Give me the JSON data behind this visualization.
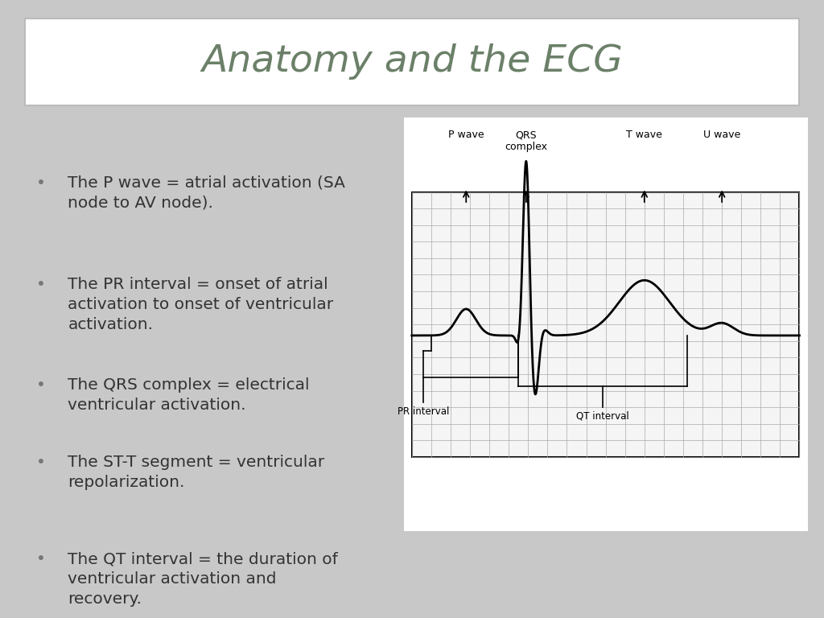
{
  "title": "Anatomy and the ECG",
  "title_color": "#6b8068",
  "title_fontsize": 34,
  "bg_color": "#c8c8c8",
  "title_box_color": "#ffffff",
  "title_box_edge": "#bbbbbb",
  "bullet_points": [
    "The P wave = atrial activation (SA\nnode to AV node).",
    "The PR interval = onset of atrial\nactivation to onset of ventricular\nactivation.",
    "The QRS complex = electrical\nventricular activation.",
    "The ST-T segment = ventricular\nrepolarization.",
    "The QT interval = the duration of\nventricular activation and\nrecovery."
  ],
  "bullet_color": "#333333",
  "bullet_fontsize": 14.5,
  "ecg_labels_top": [
    "P wave",
    "QRS\ncomplex",
    "T wave",
    "U wave"
  ],
  "grid_color": "#aaaaaa",
  "ecg_line_color": "#000000",
  "ecg_border_color": "#000000",
  "ecg_bg_color": "#f5f5f5"
}
